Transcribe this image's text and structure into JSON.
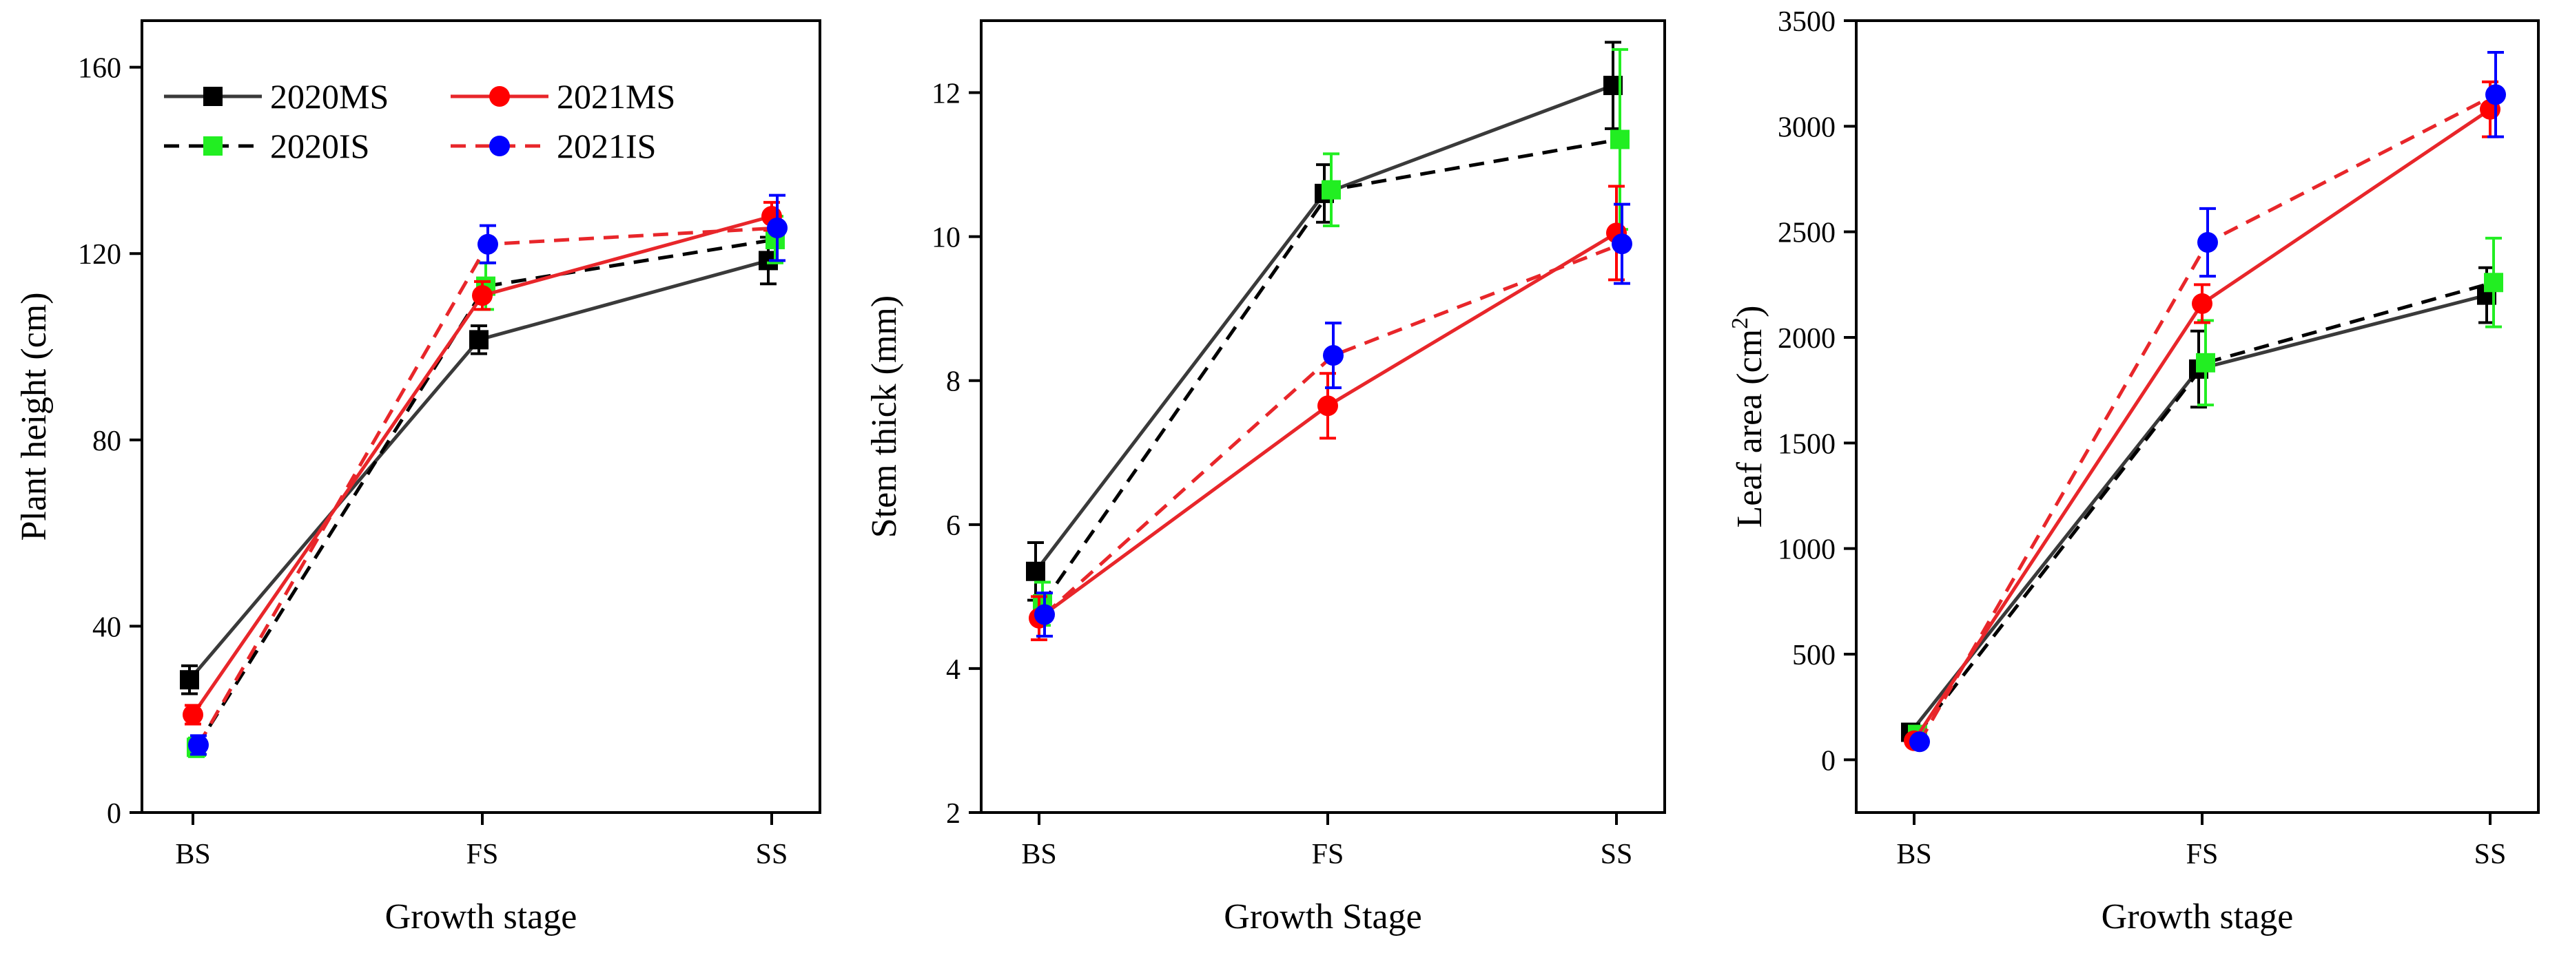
{
  "colors": {
    "2020MS": "#3a3a3a",
    "2021MS": "#e8262a",
    "2020IS": "#000000",
    "2021IS": "#e8262a",
    "marker_2020MS": "#000000",
    "marker_2021MS": "#ff0000",
    "marker_2020IS": "#22ee22",
    "marker_2021IS": "#0000ff"
  },
  "legend": {
    "position": "top-left of first chart",
    "entries": [
      "2020MS",
      "2021MS",
      "2020IS",
      "2021IS"
    ]
  },
  "chart_data": [
    {
      "type": "line",
      "title": "",
      "xlabel": "Growth stage",
      "ylabel": "Plant height (cm)",
      "categories": [
        "BS",
        "FS",
        "SS"
      ],
      "ylim": [
        0,
        170
      ],
      "yticks": [
        0,
        40,
        80,
        120,
        160
      ],
      "series": [
        {
          "name": "2020MS",
          "values": [
            28.5,
            101.5,
            118.5
          ],
          "errors": [
            3,
            3,
            5
          ],
          "line": "solid",
          "marker": "square"
        },
        {
          "name": "2021MS",
          "values": [
            21,
            111,
            128
          ],
          "errors": [
            2,
            3,
            3
          ],
          "line": "solid",
          "marker": "circle"
        },
        {
          "name": "2020IS",
          "values": [
            14,
            113,
            123
          ],
          "errors": [
            2,
            5,
            5
          ],
          "line": "dashed",
          "marker": "square"
        },
        {
          "name": "2021IS",
          "values": [
            14.5,
            122,
            125.5
          ],
          "errors": [
            2,
            4,
            7
          ],
          "line": "dashed",
          "marker": "circle"
        }
      ]
    },
    {
      "type": "line",
      "title": "",
      "xlabel": "Growth Stage",
      "ylabel": "Stem thick (mm)",
      "categories": [
        "BS",
        "FS",
        "SS"
      ],
      "ylim": [
        2,
        13
      ],
      "yticks": [
        2,
        4,
        6,
        8,
        10,
        12
      ],
      "series": [
        {
          "name": "2020MS",
          "values": [
            5.35,
            10.6,
            12.1
          ],
          "errors": [
            0.4,
            0.4,
            0.6
          ],
          "line": "solid",
          "marker": "square"
        },
        {
          "name": "2021MS",
          "values": [
            4.7,
            7.65,
            10.05
          ],
          "errors": [
            0.3,
            0.45,
            0.65
          ],
          "line": "solid",
          "marker": "circle"
        },
        {
          "name": "2020IS",
          "values": [
            4.9,
            10.65,
            11.35
          ],
          "errors": [
            0.3,
            0.5,
            1.25
          ],
          "line": "dashed",
          "marker": "square"
        },
        {
          "name": "2021IS",
          "values": [
            4.75,
            8.35,
            9.9
          ],
          "errors": [
            0.3,
            0.45,
            0.55
          ],
          "line": "dashed",
          "marker": "circle"
        }
      ]
    },
    {
      "type": "line",
      "title": "",
      "xlabel": "Growth stage",
      "ylabel": "Leaf area (cm",
      "ylabel_sup": "2",
      "ylabel_end": ")",
      "categories": [
        "BS",
        "FS",
        "SS"
      ],
      "ylim": [
        -250,
        3500
      ],
      "yticks": [
        0,
        500,
        1000,
        1500,
        2000,
        2500,
        3000,
        3500
      ],
      "series": [
        {
          "name": "2020MS",
          "values": [
            130,
            1850,
            2200
          ],
          "errors": [
            30,
            180,
            130
          ],
          "line": "solid",
          "marker": "square"
        },
        {
          "name": "2021MS",
          "values": [
            90,
            2160,
            3080
          ],
          "errors": [
            20,
            90,
            130
          ],
          "line": "solid",
          "marker": "circle"
        },
        {
          "name": "2020IS",
          "values": [
            120,
            1880,
            2260
          ],
          "errors": [
            30,
            200,
            210
          ],
          "line": "dashed",
          "marker": "square"
        },
        {
          "name": "2021IS",
          "values": [
            85,
            2450,
            3150
          ],
          "errors": [
            20,
            160,
            200
          ],
          "line": "dashed",
          "marker": "circle"
        }
      ]
    }
  ]
}
